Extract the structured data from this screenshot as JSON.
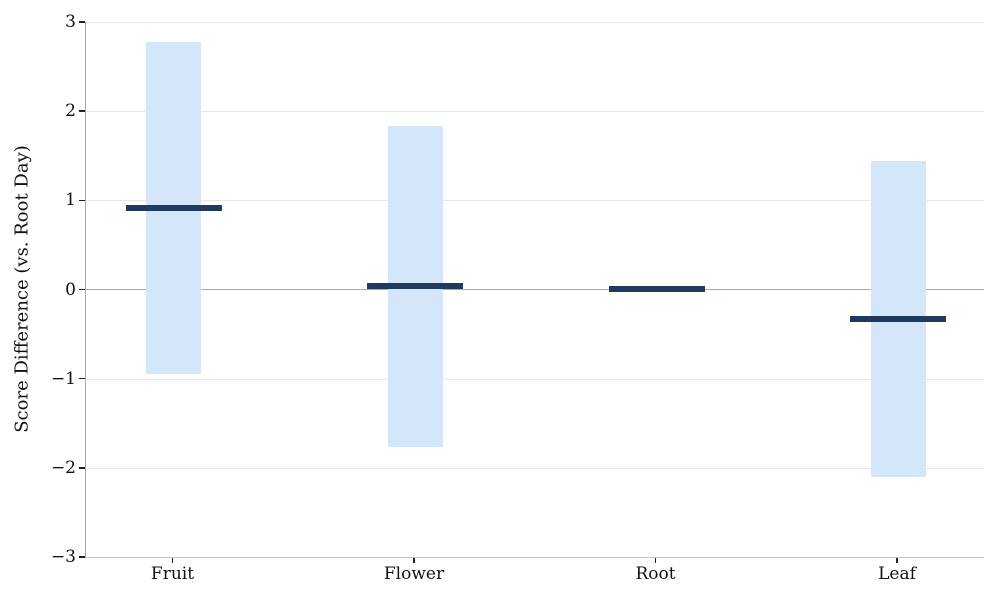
{
  "figure": {
    "background": "#ffffff"
  },
  "chart_data": {
    "type": "bar",
    "subtype": "range-bar-with-mean-marker",
    "title": "",
    "xlabel": "",
    "ylabel": "Score Difference (vs. Root Day)",
    "categories": [
      "Fruit",
      "Flower",
      "Root",
      "Leaf"
    ],
    "series": [
      {
        "name": "score-range",
        "role": "range",
        "low": [
          -0.95,
          -1.77,
          null,
          -2.1
        ],
        "high": [
          2.78,
          1.83,
          null,
          1.44
        ]
      },
      {
        "name": "mean-difference",
        "role": "mean",
        "values": [
          0.91,
          0.04,
          0.01,
          -0.33
        ]
      }
    ],
    "ylim": [
      -3,
      3
    ],
    "yticks": [
      3,
      2,
      1,
      0,
      -1,
      -2,
      -3
    ],
    "ytick_labels": [
      "3",
      "2",
      "1",
      "0",
      "−1",
      "−2",
      "−3"
    ],
    "grid": true,
    "legend": false,
    "zero_line_at": 0,
    "colors": {
      "range_fill": "#d4e6fa",
      "mean_line": "#1f3a5e",
      "zero_line": "#9fa9bc",
      "gridline": "#e7e7e7",
      "tick_mark": "#222222",
      "text": "#111111"
    }
  }
}
